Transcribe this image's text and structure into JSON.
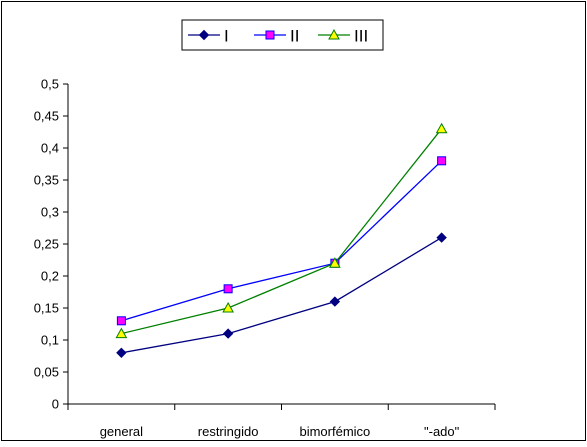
{
  "chart_data": {
    "type": "line",
    "categories": [
      "general",
      "restringido",
      "bimorfémico",
      "\"-ado\""
    ],
    "series": [
      {
        "name": "I",
        "values": [
          0.08,
          0.11,
          0.16,
          0.26
        ],
        "color": "#000080",
        "marker": "diamond"
      },
      {
        "name": "II",
        "values": [
          0.13,
          0.18,
          0.22,
          0.38
        ],
        "color": "#0000ff",
        "marker": "square",
        "marker_fill": "#ff00ff"
      },
      {
        "name": "III",
        "values": [
          0.11,
          0.15,
          0.22,
          0.43
        ],
        "color": "#008000",
        "marker": "triangle",
        "marker_fill": "#ffff00"
      }
    ],
    "ylim": [
      0,
      0.5
    ],
    "yticks": [
      "0",
      "0,05",
      "0,1",
      "0,15",
      "0,2",
      "0,25",
      "0,3",
      "0,35",
      "0,4",
      "0,45",
      "0,5"
    ],
    "ytick_values": [
      0,
      0.05,
      0.1,
      0.15,
      0.2,
      0.25,
      0.3,
      0.35,
      0.4,
      0.45,
      0.5
    ],
    "grid": false,
    "legend_position": "top-center",
    "title": "",
    "xlabel": "",
    "ylabel": ""
  }
}
